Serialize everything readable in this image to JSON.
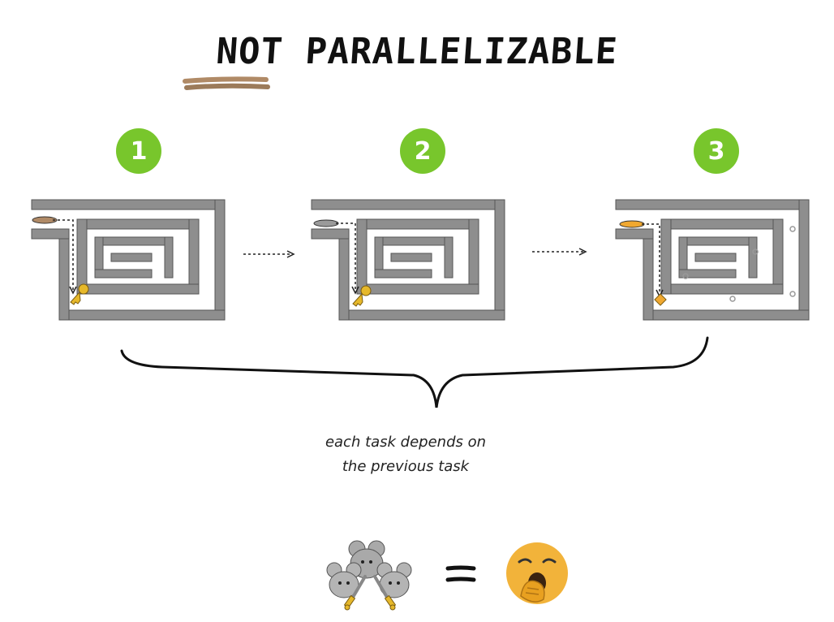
{
  "title": "NOT PARALLELIZABLE",
  "steps": [
    {
      "number": "1"
    },
    {
      "number": "2"
    },
    {
      "number": "3"
    }
  ],
  "caption": {
    "line1": "each task depends on",
    "line2": "the previous task"
  },
  "equation": {
    "left_icon": "mice-with-swords",
    "operator_icon": "equals",
    "right_icon": "yawning-face"
  },
  "colors": {
    "badge": "#78c62c",
    "maze_wall": "#8e8e8e",
    "key": "#e6b82a",
    "emoji": "#f2b33a"
  }
}
